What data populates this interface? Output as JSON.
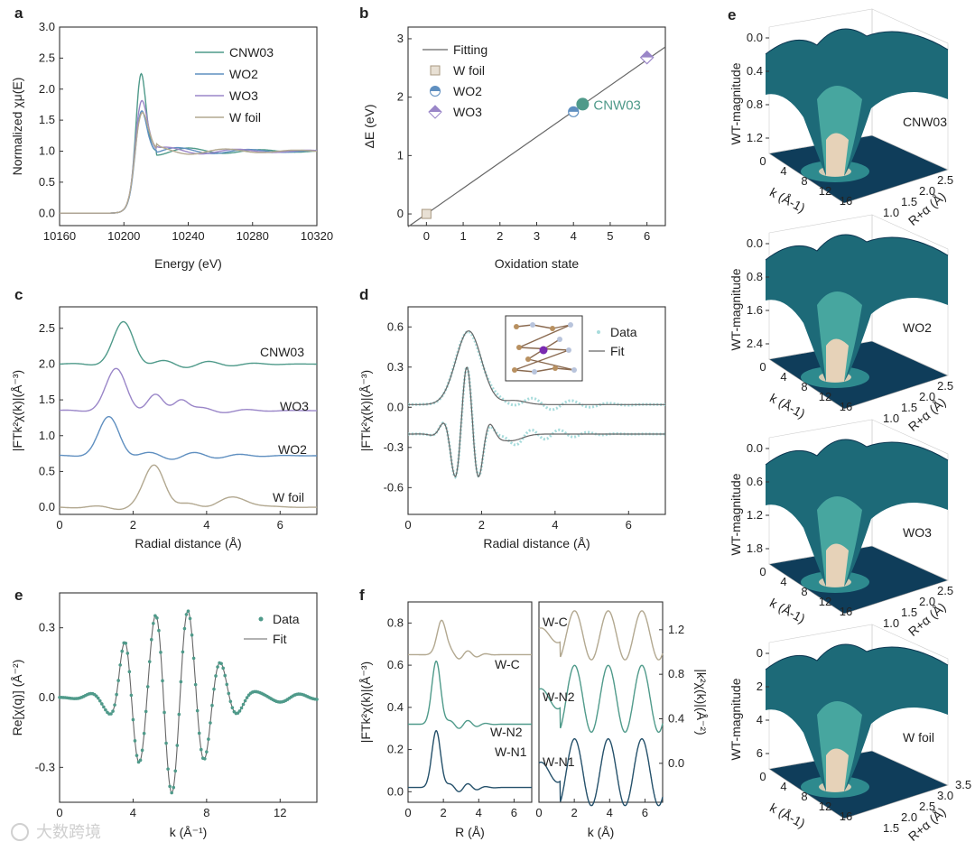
{
  "colors": {
    "cnw03": "#4f9a8a",
    "wo2": "#5f8fc0",
    "wo3": "#9a86c8",
    "wfoil": "#b2a890",
    "fit": "#666666",
    "data_cyan": "#a8dcdc",
    "wt_low": "#0f3d5a",
    "wt_mid": "#2c8c8a",
    "wt_peak": "#e6d2b8"
  },
  "panel_labels": [
    "a",
    "b",
    "c",
    "d",
    "e",
    "f",
    "e"
  ],
  "watermark": "大数跨境",
  "chart_data": [
    {
      "id": "a",
      "type": "line",
      "xlabel": "Energy (eV)",
      "ylabel": "Normalized χμ(E)",
      "xlim": [
        10160,
        10320
      ],
      "ylim": [
        -0.2,
        3.0
      ],
      "xticks": [
        "10160",
        "10200",
        "10240",
        "10280",
        "10320"
      ],
      "yticks": [
        "0.0",
        "0.5",
        "1.0",
        "1.5",
        "2.0",
        "2.5",
        "3.0"
      ],
      "legend": [
        "CNW03",
        "WO2",
        "WO3",
        "W foil"
      ],
      "series": [
        {
          "name": "CNW03",
          "peak_x": 10210,
          "peak_y": 2.55
        },
        {
          "name": "WO2",
          "peak_x": 10210,
          "peak_y": 1.85
        },
        {
          "name": "WO3",
          "peak_x": 10210,
          "peak_y": 2.03
        },
        {
          "name": "W foil",
          "peak_x": 10210,
          "peak_y": 1.8
        }
      ]
    },
    {
      "id": "b",
      "type": "scatter",
      "xlabel": "Oxidation state",
      "ylabel": "ΔE (eV)",
      "xlim": [
        -0.5,
        6.5
      ],
      "ylim": [
        -0.2,
        3.2
      ],
      "xticks": [
        "0",
        "1",
        "2",
        "3",
        "4",
        "5",
        "6"
      ],
      "yticks": [
        "0",
        "1",
        "2",
        "3"
      ],
      "legend": [
        "Fitting",
        "W foil",
        "WO2",
        "WO3"
      ],
      "points": [
        {
          "name": "W foil",
          "x": 0,
          "y": 0.0
        },
        {
          "name": "WO2",
          "x": 4,
          "y": 1.75
        },
        {
          "name": "WO3",
          "x": 6,
          "y": 2.68
        },
        {
          "name": "CNW03",
          "x": 4.25,
          "y": 1.88
        }
      ],
      "fit_line": {
        "slope": 0.44,
        "intercept": 0.0
      },
      "annotation": "CNW03"
    },
    {
      "id": "c",
      "type": "line",
      "xlabel": "Radial distance (Å)",
      "ylabel": "|FTk²χ(k)|(Å⁻³)",
      "xlim": [
        0,
        7
      ],
      "ylim": [
        -0.1,
        2.8
      ],
      "xticks": [
        "0",
        "2",
        "4",
        "6"
      ],
      "yticks": [
        "0.0",
        "0.5",
        "1.0",
        "1.5",
        "2.0",
        "2.5"
      ],
      "labels": [
        "CNW03",
        "WO3",
        "WO2",
        "W foil"
      ],
      "series": [
        {
          "name": "CNW03",
          "offset": 2.0,
          "peak_x": 1.75,
          "peak_y": 2.57
        },
        {
          "name": "WO3",
          "offset": 1.35,
          "peak_x": 1.55,
          "peak_y": 1.92
        },
        {
          "name": "WO2",
          "offset": 0.72,
          "peak_x": 1.35,
          "peak_y": 1.25
        },
        {
          "name": "W foil",
          "offset": 0.0,
          "peak_x": 2.6,
          "peak_y": 0.6
        }
      ]
    },
    {
      "id": "d",
      "type": "line",
      "xlabel": "Radial distance (Å)",
      "ylabel": "|FTk²χ(k)|(Å⁻³)",
      "xlim": [
        0,
        7
      ],
      "ylim": [
        -0.8,
        0.75
      ],
      "xticks": [
        "0",
        "2",
        "4",
        "6"
      ],
      "yticks": [
        "-0.6",
        "-0.3",
        "0.0",
        "0.3",
        "0.6"
      ],
      "legend": [
        "Data",
        "Fit"
      ],
      "peak": {
        "x": 1.65,
        "y": 0.55
      }
    },
    {
      "id": "e",
      "type": "line",
      "xlabel": "k (Å⁻¹)",
      "ylabel": "Re[χ(q)] (Å⁻²)",
      "xlim": [
        0,
        14
      ],
      "ylim": [
        -0.45,
        0.45
      ],
      "xticks": [
        "0",
        "4",
        "8",
        "12"
      ],
      "yticks": [
        "-0.3",
        "0.0",
        "0.3"
      ],
      "legend": [
        "Data",
        "Fit"
      ],
      "extrema": [
        {
          "x": 5.3,
          "y": 0.38
        },
        {
          "x": 6.1,
          "y": -0.39
        },
        {
          "x": 7.0,
          "y": 0.41
        },
        {
          "x": 8.0,
          "y": -0.29
        },
        {
          "x": 9.3,
          "y": 0.17
        }
      ]
    },
    {
      "id": "f-left",
      "type": "line",
      "xlabel": "R (Å)",
      "ylabel": "|FTk²χ(k)|(Å⁻³)",
      "xlim": [
        0,
        7
      ],
      "ylim": [
        -0.05,
        0.9
      ],
      "xticks": [
        "0",
        "2",
        "4",
        "6"
      ],
      "yticks": [
        "0.0",
        "0.2",
        "0.4",
        "0.6",
        "0.8"
      ],
      "labels": [
        "W-C",
        "W-N2",
        "W-N1"
      ]
    },
    {
      "id": "f-right",
      "type": "line",
      "xlabel": "k (Å)",
      "ylabel": "|k²χ(k)|(Å⁻²)",
      "xlim": [
        0,
        7
      ],
      "ylim": [
        -0.35,
        1.45
      ],
      "xticks": [
        "0",
        "2",
        "4",
        "6"
      ],
      "yticks": [
        "0.0",
        "0.4",
        "0.8",
        "1.2"
      ],
      "labels": [
        "W-C",
        "W-N2",
        "W-N1"
      ]
    },
    {
      "id": "e-right",
      "type": "surface",
      "zlabel": "WT-magnitude",
      "xlabel": "k (Å-1)",
      "ylabel": "R+α (Å)",
      "surfaces": [
        {
          "name": "CNW03",
          "zticks": [
            "0.0",
            "0.4",
            "0.8",
            "1.2"
          ],
          "xticks": [
            "0",
            "4",
            "8",
            "12",
            "16"
          ],
          "yticks": [
            "1.0",
            "1.5",
            "2.0",
            "2.5"
          ]
        },
        {
          "name": "WO2",
          "zticks": [
            "0.0",
            "0.8",
            "1.6",
            "2.4"
          ],
          "xticks": [
            "0",
            "4",
            "8",
            "12",
            "16"
          ],
          "yticks": [
            "1.0",
            "1.5",
            "2.0",
            "2.5"
          ]
        },
        {
          "name": "WO3",
          "zticks": [
            "0.0",
            "0.6",
            "1.2",
            "1.8"
          ],
          "xticks": [
            "0",
            "4",
            "8",
            "12",
            "16"
          ],
          "yticks": [
            "1.0",
            "1.5",
            "2.0",
            "2.5"
          ]
        },
        {
          "name": "W foil",
          "zticks": [
            "0",
            "2",
            "4",
            "6"
          ],
          "xticks": [
            "0",
            "4",
            "8",
            "12",
            "16"
          ],
          "yticks": [
            "1.5",
            "2.0",
            "2.5",
            "3.0",
            "3.5"
          ]
        }
      ]
    }
  ]
}
